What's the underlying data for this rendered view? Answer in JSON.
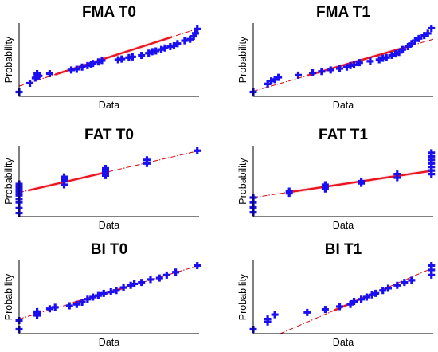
{
  "figure": {
    "background": "#ffffff"
  },
  "style": {
    "marker_color": "#1a0ff0",
    "fit_solid_color": "#e8141e",
    "fit_dashed_color": "#d8141e",
    "band_color": "#f7c8d2",
    "marker": "plus"
  },
  "chart_data": [
    {
      "type": "scatter",
      "title": "FMA T0",
      "xlabel": "Data",
      "ylabel": "Probability",
      "xlim": [
        0,
        1
      ],
      "ylim": [
        0,
        1
      ],
      "grid": false,
      "legend": "none",
      "fit": {
        "line": [
          [
            0.0,
            0.14
          ],
          [
            1.0,
            0.93
          ]
        ],
        "solid": [
          0.2,
          0.85
        ]
      },
      "points": [
        [
          0.0,
          0.06
        ],
        [
          0.06,
          0.18
        ],
        [
          0.09,
          0.25
        ],
        [
          0.1,
          0.27
        ],
        [
          0.11,
          0.28
        ],
        [
          0.1,
          0.31
        ],
        [
          0.17,
          0.31
        ],
        [
          0.29,
          0.36
        ],
        [
          0.32,
          0.37
        ],
        [
          0.35,
          0.4
        ],
        [
          0.38,
          0.42
        ],
        [
          0.4,
          0.44
        ],
        [
          0.41,
          0.45
        ],
        [
          0.44,
          0.47
        ],
        [
          0.46,
          0.49
        ],
        [
          0.55,
          0.5
        ],
        [
          0.57,
          0.51
        ],
        [
          0.61,
          0.53
        ],
        [
          0.63,
          0.54
        ],
        [
          0.68,
          0.56
        ],
        [
          0.72,
          0.59
        ],
        [
          0.74,
          0.61
        ],
        [
          0.76,
          0.62
        ],
        [
          0.79,
          0.64
        ],
        [
          0.81,
          0.66
        ],
        [
          0.84,
          0.68
        ],
        [
          0.86,
          0.69
        ],
        [
          0.88,
          0.72
        ],
        [
          0.92,
          0.76
        ],
        [
          0.95,
          0.78
        ],
        [
          0.97,
          0.82
        ],
        [
          0.98,
          0.86
        ],
        [
          0.99,
          0.92
        ]
      ]
    },
    {
      "type": "scatter",
      "title": "FMA T1",
      "xlabel": "Data",
      "ylabel": "Probability",
      "xlim": [
        0,
        1
      ],
      "ylim": [
        0,
        1
      ],
      "grid": false,
      "legend": "none",
      "fit": {
        "line": [
          [
            0.0,
            0.07
          ],
          [
            1.0,
            0.78
          ]
        ],
        "solid": [
          0.3,
          0.88
        ]
      },
      "points": [
        [
          0.0,
          0.06
        ],
        [
          0.08,
          0.17
        ],
        [
          0.1,
          0.21
        ],
        [
          0.12,
          0.23
        ],
        [
          0.14,
          0.26
        ],
        [
          0.25,
          0.29
        ],
        [
          0.33,
          0.32
        ],
        [
          0.38,
          0.34
        ],
        [
          0.43,
          0.36
        ],
        [
          0.48,
          0.38
        ],
        [
          0.52,
          0.4
        ],
        [
          0.54,
          0.42
        ],
        [
          0.56,
          0.43
        ],
        [
          0.59,
          0.46
        ],
        [
          0.65,
          0.48
        ],
        [
          0.7,
          0.5
        ],
        [
          0.72,
          0.52
        ],
        [
          0.74,
          0.53
        ],
        [
          0.77,
          0.56
        ],
        [
          0.79,
          0.58
        ],
        [
          0.81,
          0.6
        ],
        [
          0.83,
          0.64
        ],
        [
          0.86,
          0.68
        ],
        [
          0.88,
          0.72
        ],
        [
          0.9,
          0.76
        ],
        [
          0.92,
          0.79
        ],
        [
          0.95,
          0.83
        ],
        [
          0.97,
          0.86
        ],
        [
          0.99,
          0.93
        ]
      ]
    },
    {
      "type": "scatter",
      "title": "FAT T0",
      "xlabel": "Data",
      "ylabel": "Probability",
      "xlim": [
        0,
        1
      ],
      "ylim": [
        0,
        1
      ],
      "grid": false,
      "legend": "none",
      "fit": {
        "line": [
          [
            0.0,
            0.34
          ],
          [
            1.0,
            0.93
          ]
        ],
        "solid": [
          0.05,
          0.5
        ]
      },
      "points": [
        [
          0.0,
          0.05
        ],
        [
          0.0,
          0.12
        ],
        [
          0.0,
          0.2
        ],
        [
          0.0,
          0.25
        ],
        [
          0.0,
          0.3
        ],
        [
          0.0,
          0.34
        ],
        [
          0.0,
          0.37
        ],
        [
          0.0,
          0.4
        ],
        [
          0.0,
          0.43
        ],
        [
          0.0,
          0.46
        ],
        [
          0.25,
          0.45
        ],
        [
          0.25,
          0.5
        ],
        [
          0.25,
          0.53
        ],
        [
          0.25,
          0.56
        ],
        [
          0.48,
          0.58
        ],
        [
          0.48,
          0.62
        ],
        [
          0.48,
          0.65
        ],
        [
          0.48,
          0.68
        ],
        [
          0.71,
          0.75
        ],
        [
          0.71,
          0.8
        ],
        [
          0.99,
          0.93
        ]
      ]
    },
    {
      "type": "scatter",
      "title": "FAT T1",
      "xlabel": "Data",
      "ylabel": "Probability",
      "xlim": [
        0,
        1
      ],
      "ylim": [
        0,
        1
      ],
      "grid": false,
      "legend": "none",
      "fit": {
        "line": [
          [
            0.0,
            0.27
          ],
          [
            1.0,
            0.65
          ]
        ],
        "solid": [
          0.2,
          1.0
        ]
      },
      "points": [
        [
          0.0,
          0.06
        ],
        [
          0.0,
          0.13
        ],
        [
          0.0,
          0.2
        ],
        [
          0.0,
          0.27
        ],
        [
          0.2,
          0.33
        ],
        [
          0.2,
          0.36
        ],
        [
          0.4,
          0.39
        ],
        [
          0.4,
          0.42
        ],
        [
          0.4,
          0.45
        ],
        [
          0.6,
          0.47
        ],
        [
          0.6,
          0.5
        ],
        [
          0.8,
          0.55
        ],
        [
          0.8,
          0.6
        ],
        [
          0.99,
          0.6
        ],
        [
          0.99,
          0.65
        ],
        [
          0.99,
          0.7
        ],
        [
          0.99,
          0.75
        ],
        [
          0.99,
          0.8
        ],
        [
          0.99,
          0.85
        ],
        [
          0.99,
          0.9
        ]
      ]
    },
    {
      "type": "scatter",
      "title": "BI T0",
      "xlabel": "Data",
      "ylabel": "Probability",
      "xlim": [
        0,
        1
      ],
      "ylim": [
        0,
        1
      ],
      "grid": false,
      "legend": "none",
      "fit": {
        "line": [
          [
            0.0,
            0.2
          ],
          [
            1.0,
            0.93
          ]
        ],
        "solid": [
          0.3,
          0.6
        ]
      },
      "points": [
        [
          0.0,
          0.06
        ],
        [
          0.0,
          0.18
        ],
        [
          0.1,
          0.25
        ],
        [
          0.1,
          0.28
        ],
        [
          0.1,
          0.3
        ],
        [
          0.17,
          0.34
        ],
        [
          0.2,
          0.36
        ],
        [
          0.28,
          0.38
        ],
        [
          0.32,
          0.4
        ],
        [
          0.35,
          0.43
        ],
        [
          0.38,
          0.47
        ],
        [
          0.41,
          0.5
        ],
        [
          0.44,
          0.52
        ],
        [
          0.47,
          0.55
        ],
        [
          0.51,
          0.57
        ],
        [
          0.54,
          0.59
        ],
        [
          0.58,
          0.63
        ],
        [
          0.62,
          0.66
        ],
        [
          0.64,
          0.68
        ],
        [
          0.68,
          0.7
        ],
        [
          0.73,
          0.74
        ],
        [
          0.78,
          0.76
        ],
        [
          0.82,
          0.8
        ],
        [
          0.87,
          0.84
        ],
        [
          0.99,
          0.93
        ]
      ]
    },
    {
      "type": "scatter",
      "title": "BI T1",
      "xlabel": "Data",
      "ylabel": "Probability",
      "xlim": [
        0,
        1
      ],
      "ylim": [
        0,
        1
      ],
      "grid": false,
      "legend": "none",
      "fit": {
        "line": [
          [
            0.15,
            0.0
          ],
          [
            1.0,
            0.9
          ]
        ],
        "solid": [
          0.45,
          0.68
        ]
      },
      "points": [
        [
          0.0,
          0.06
        ],
        [
          0.08,
          0.16
        ],
        [
          0.08,
          0.2
        ],
        [
          0.12,
          0.26
        ],
        [
          0.3,
          0.29
        ],
        [
          0.4,
          0.33
        ],
        [
          0.48,
          0.37
        ],
        [
          0.54,
          0.4
        ],
        [
          0.56,
          0.44
        ],
        [
          0.6,
          0.47
        ],
        [
          0.63,
          0.5
        ],
        [
          0.66,
          0.53
        ],
        [
          0.68,
          0.55
        ],
        [
          0.72,
          0.59
        ],
        [
          0.75,
          0.62
        ],
        [
          0.8,
          0.66
        ],
        [
          0.84,
          0.7
        ],
        [
          0.88,
          0.73
        ],
        [
          0.99,
          0.8
        ],
        [
          0.99,
          0.87
        ],
        [
          0.99,
          0.93
        ]
      ]
    }
  ]
}
